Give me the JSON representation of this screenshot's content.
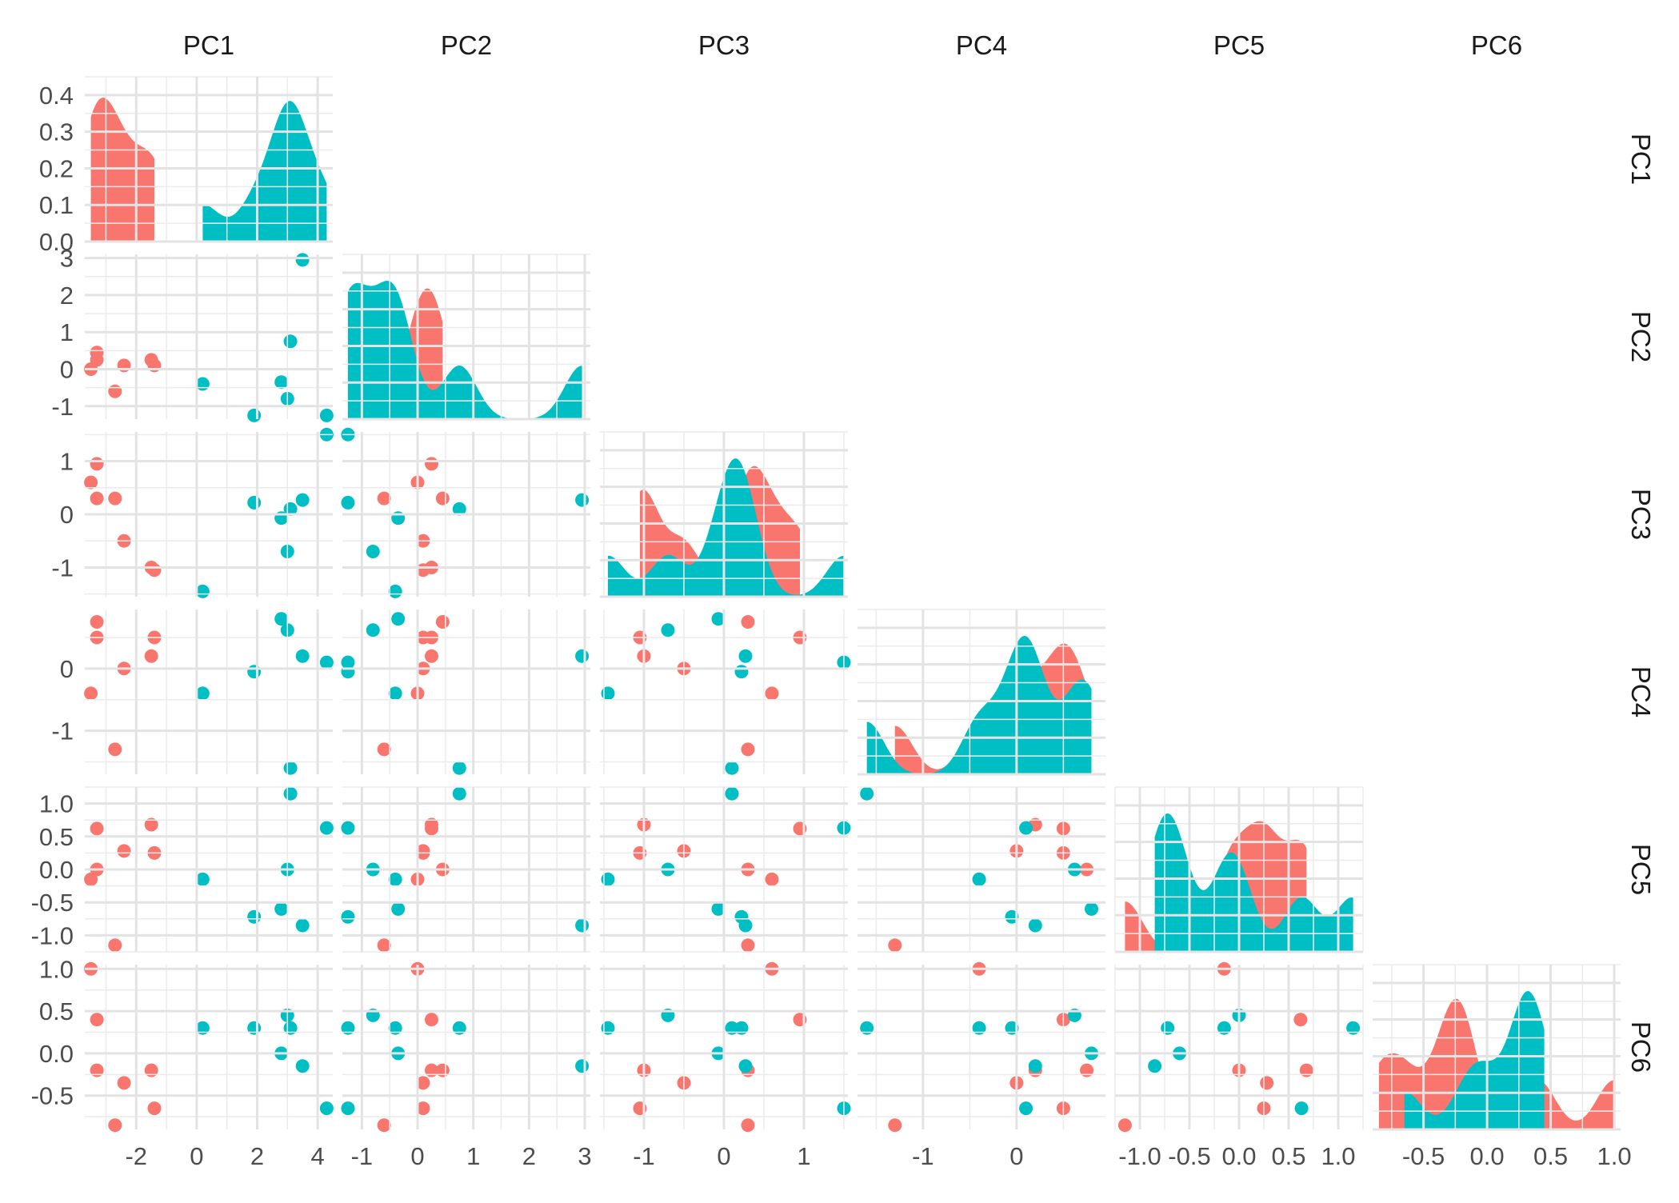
{
  "chart_data": {
    "type": "scatter",
    "subtype": "pairs-plot",
    "variables": [
      "PC1",
      "PC2",
      "PC3",
      "PC4",
      "PC5",
      "PC6"
    ],
    "groups": [
      {
        "color": "#F8766D"
      },
      {
        "color": "#00BFC4"
      }
    ],
    "grid": true,
    "diagonal": "density",
    "observations": {
      "red": [
        {
          "PC1": -3.5,
          "PC2": 0.0,
          "PC3": 0.6,
          "PC4": -0.4,
          "PC5": -0.15,
          "PC6": 1.0
        },
        {
          "PC1": -3.3,
          "PC2": 0.25,
          "PC3": 0.95,
          "PC4": 0.5,
          "PC5": 0.62,
          "PC6": 0.4
        },
        {
          "PC1": -3.3,
          "PC2": 0.45,
          "PC3": 0.3,
          "PC4": 0.75,
          "PC5": 0.0,
          "PC6": -0.2
        },
        {
          "PC1": -2.7,
          "PC2": -0.6,
          "PC3": 0.3,
          "PC4": -1.3,
          "PC5": -1.15,
          "PC6": -0.85
        },
        {
          "PC1": -2.4,
          "PC2": 0.1,
          "PC3": -0.5,
          "PC4": 0.0,
          "PC5": 0.28,
          "PC6": -0.35
        },
        {
          "PC1": -1.5,
          "PC2": 0.25,
          "PC3": -1.0,
          "PC4": 0.2,
          "PC5": 0.68,
          "PC6": -0.2
        },
        {
          "PC1": -1.4,
          "PC2": 0.1,
          "PC3": -1.05,
          "PC4": 0.5,
          "PC5": 0.25,
          "PC6": -0.65
        }
      ],
      "teal": [
        {
          "PC1": 0.2,
          "PC2": -0.4,
          "PC3": -1.45,
          "PC4": -0.4,
          "PC5": -0.15,
          "PC6": 0.3
        },
        {
          "PC1": 1.9,
          "PC2": -1.25,
          "PC3": 0.22,
          "PC4": -0.05,
          "PC5": -0.72,
          "PC6": 0.3
        },
        {
          "PC1": 2.8,
          "PC2": -0.35,
          "PC3": -0.07,
          "PC4": 0.8,
          "PC5": -0.6,
          "PC6": 0.0
        },
        {
          "PC1": 3.0,
          "PC2": -0.8,
          "PC3": -0.7,
          "PC4": 0.62,
          "PC5": 0.0,
          "PC6": 0.45
        },
        {
          "PC1": 3.1,
          "PC2": 0.75,
          "PC3": 0.1,
          "PC4": -1.6,
          "PC5": 1.15,
          "PC6": 0.3
        },
        {
          "PC1": 3.5,
          "PC2": 2.95,
          "PC3": 0.27,
          "PC4": 0.2,
          "PC5": -0.85,
          "PC6": -0.15
        },
        {
          "PC1": 4.3,
          "PC2": -1.25,
          "PC3": 1.5,
          "PC4": 0.1,
          "PC5": 0.63,
          "PC6": -0.65
        }
      ]
    },
    "diagonal_ylim": [
      0,
      0.45
    ],
    "diagonal_yticks": [
      0.0,
      0.1,
      0.2,
      0.3,
      0.4
    ],
    "axes": {
      "PC1": {
        "lim": [
          -3.7,
          4.5
        ],
        "ticks": [
          -2,
          0,
          2,
          4
        ]
      },
      "PC2": {
        "lim": [
          -1.35,
          3.1
        ],
        "ticks": [
          -1,
          0,
          1,
          2,
          3
        ]
      },
      "PC3": {
        "lim": [
          -1.55,
          1.55
        ],
        "ticks": [
          -1,
          0,
          1
        ]
      },
      "PC4": {
        "lim": [
          -1.7,
          0.95
        ],
        "ticks": [
          -1,
          0
        ]
      },
      "PC5": {
        "lim": [
          -1.25,
          1.25
        ],
        "ticks": [
          -1.0,
          -0.5,
          0.0,
          0.5,
          1.0
        ]
      },
      "PC6": {
        "lim": [
          -0.9,
          1.05
        ],
        "ticks": [
          -0.5,
          0.0,
          0.5,
          1.0
        ]
      }
    },
    "tick_labels": {
      "PC1": [
        "-2",
        "0",
        "2",
        "4"
      ],
      "PC2": [
        "-1",
        "0",
        "1",
        "2",
        "3"
      ],
      "PC3": [
        "-1",
        "0",
        "1"
      ],
      "PC4": [
        "-1",
        "0"
      ],
      "PC5": [
        "-1.0",
        "-0.5",
        "0.0",
        "0.5",
        "1.0"
      ],
      "PC6": [
        "-0.5",
        "0.0",
        "0.5",
        "1.0"
      ],
      "PC5_x": [
        "-1.0",
        "-0.5",
        "0.0",
        "0.5",
        "1.0"
      ],
      "diagonal_y": [
        "0.0",
        "0.1",
        "0.2",
        "0.3",
        "0.4"
      ]
    }
  }
}
